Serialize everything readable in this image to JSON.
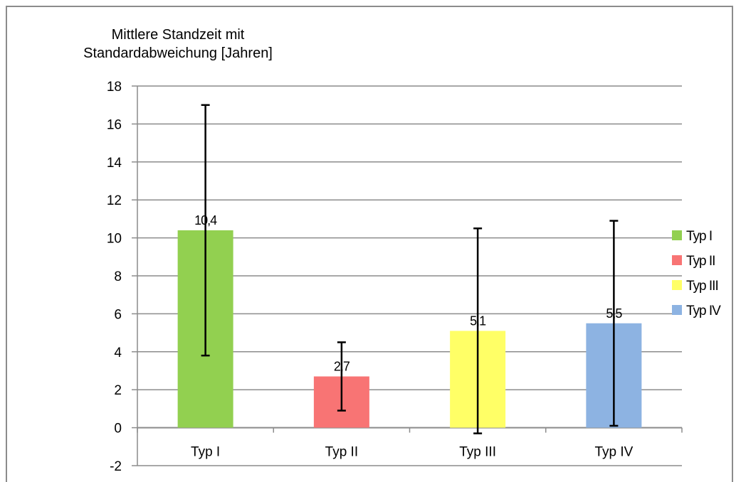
{
  "chart_data": {
    "type": "bar",
    "title": "",
    "ylabel_line1": "Mittlere Standzeit mit",
    "ylabel_line2": "Standardabweichung [Jahren]",
    "xlabel": "",
    "ylim": [
      -2,
      18
    ],
    "yticks": [
      -2,
      0,
      2,
      4,
      6,
      8,
      10,
      12,
      14,
      16,
      18
    ],
    "categories": [
      "Typ I",
      "Typ II",
      "Typ III",
      "Typ IV"
    ],
    "values": [
      10.4,
      2.7,
      5.1,
      5.5
    ],
    "value_labels": [
      "10,4",
      "2,7",
      "5,1",
      "5,5"
    ],
    "error_low": [
      3.8,
      0.9,
      -0.3,
      0.1
    ],
    "error_high": [
      17.0,
      4.5,
      10.5,
      10.9
    ],
    "colors": [
      "#92d050",
      "#f87474",
      "#ffff66",
      "#8db3e2"
    ],
    "legend": [
      "Typ I",
      "Typ II",
      "Typ III",
      "Typ IV"
    ],
    "legend_position": "right",
    "grid": true
  }
}
